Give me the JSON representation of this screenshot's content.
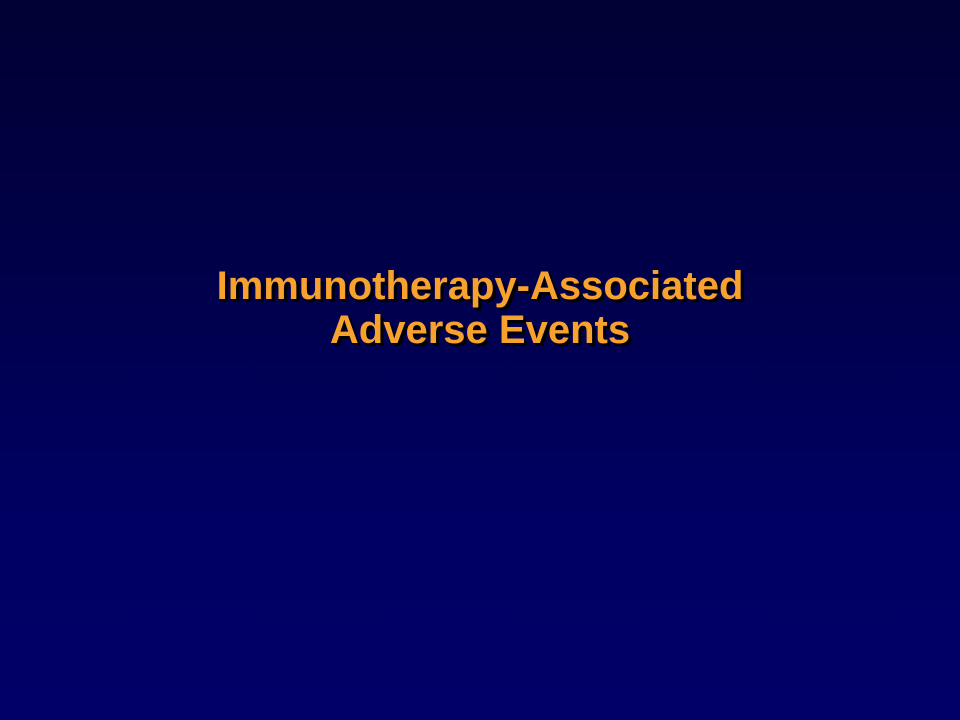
{
  "slide": {
    "title_lines": [
      "Immunotherapy-Associated",
      "Adverse Events"
    ],
    "colors": {
      "title_text": "#f7a12e",
      "title_shadow": "#000000",
      "background_top": "#000033",
      "background_bottom": "#000068"
    }
  }
}
